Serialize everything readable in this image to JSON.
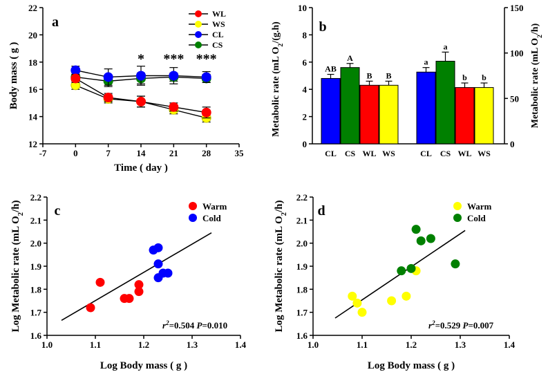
{
  "chart_data": [
    {
      "panel": "a",
      "type": "line",
      "xlabel": "Time ( day )",
      "ylabel": "Body mass ( g )",
      "xlim": [
        -7,
        35
      ],
      "ylim": [
        12,
        22
      ],
      "xticks": [
        "-7",
        "0",
        "7",
        "14",
        "21",
        "28",
        "35"
      ],
      "yticks": [
        "12",
        "14",
        "16",
        "18",
        "20",
        "22"
      ],
      "x": [
        0,
        7,
        14,
        21,
        28
      ],
      "legend": "top-right",
      "series": [
        {
          "name": "WL",
          "color": "#ff0000",
          "values": [
            16.8,
            15.4,
            15.1,
            14.7,
            14.3
          ],
          "errors": [
            0.3,
            0.3,
            0.4,
            0.3,
            0.4
          ]
        },
        {
          "name": "WS",
          "color": "#ffff00",
          "values": [
            16.3,
            15.3,
            15.1,
            14.5,
            13.9
          ],
          "errors": [
            0.3,
            0.3,
            0.4,
            0.3,
            0.3
          ]
        },
        {
          "name": "CL",
          "color": "#0000ff",
          "values": [
            17.4,
            16.9,
            17.0,
            17.0,
            16.9
          ],
          "errors": [
            0.3,
            0.6,
            0.7,
            0.6,
            0.4
          ]
        },
        {
          "name": "CS",
          "color": "#008000",
          "values": [
            16.9,
            16.6,
            16.8,
            16.9,
            16.8
          ],
          "errors": [
            0.3,
            0.4,
            0.4,
            0.3,
            0.3
          ]
        }
      ],
      "annotations": [
        {
          "x": 14,
          "text": "*"
        },
        {
          "x": 21,
          "text": "***"
        },
        {
          "x": 28,
          "text": "***"
        }
      ]
    },
    {
      "panel": "b",
      "type": "bar",
      "ylabel_left": "Metabolic rate (mL O2/(g.h)",
      "ylabel_right": "Metabolic rate (mL O2/h)",
      "ylim_left": [
        0,
        10
      ],
      "yticks_left": [
        "0",
        "2",
        "4",
        "6",
        "8",
        "10"
      ],
      "ylim_right": [
        0,
        150
      ],
      "yticks_right": [
        "0",
        "50",
        "100",
        "150"
      ],
      "groups": [
        {
          "axis": "left",
          "categories": [
            "CL",
            "CS",
            "WL",
            "WS"
          ],
          "colors": [
            "#0000ff",
            "#008000",
            "#ff0000",
            "#ffff00"
          ],
          "values": [
            4.8,
            5.6,
            4.3,
            4.3
          ],
          "errors": [
            0.3,
            0.3,
            0.3,
            0.3
          ],
          "letters": [
            "AB",
            "A",
            "B",
            "B"
          ]
        },
        {
          "axis": "right",
          "categories": [
            "CL",
            "CS",
            "WL",
            "WS"
          ],
          "colors": [
            "#0000ff",
            "#008000",
            "#ff0000",
            "#ffff00"
          ],
          "values": [
            79,
            91,
            62,
            62
          ],
          "errors": [
            5,
            10,
            5,
            5
          ],
          "letters": [
            "a",
            "a",
            "b",
            "b"
          ]
        }
      ]
    },
    {
      "panel": "c",
      "type": "scatter",
      "xlabel": "Log Body mass ( g )",
      "ylabel": "Log Metabolic rate (mL O2/h)",
      "xlim": [
        1.0,
        1.4
      ],
      "ylim": [
        1.6,
        2.2
      ],
      "xticks": [
        "1.0",
        "1.1",
        "1.2",
        "1.3",
        "1.4"
      ],
      "yticks": [
        "1.6",
        "1.7",
        "1.8",
        "1.9",
        "2.0",
        "2.1",
        "2.2"
      ],
      "legend": "top-right",
      "series": [
        {
          "name": "Warm",
          "color": "#ff0000",
          "points": [
            [
              1.09,
              1.72
            ],
            [
              1.11,
              1.83
            ],
            [
              1.16,
              1.76
            ],
            [
              1.17,
              1.76
            ],
            [
              1.19,
              1.79
            ],
            [
              1.19,
              1.82
            ]
          ]
        },
        {
          "name": "Cold",
          "color": "#0000ff",
          "points": [
            [
              1.22,
              1.97
            ],
            [
              1.23,
              1.98
            ],
            [
              1.23,
              1.91
            ],
            [
              1.23,
              1.85
            ],
            [
              1.24,
              1.87
            ],
            [
              1.25,
              1.87
            ]
          ]
        }
      ],
      "fit": {
        "x": [
          1.03,
          1.34
        ],
        "y": [
          1.665,
          2.045
        ]
      },
      "stat_r2": "=0.504",
      "stat_p": "=0.010"
    },
    {
      "panel": "d",
      "type": "scatter",
      "xlabel": "Log Body mass ( g )",
      "ylabel": "Log Metabolic rate (mL O2/h)",
      "xlim": [
        1.0,
        1.4
      ],
      "ylim": [
        1.6,
        2.2
      ],
      "xticks": [
        "1.0",
        "1.1",
        "1.2",
        "1.3",
        "1.4"
      ],
      "yticks": [
        "1.6",
        "1.7",
        "1.8",
        "1.9",
        "2.0",
        "2.1",
        "2.2"
      ],
      "legend": "top-right",
      "series": [
        {
          "name": "Warm",
          "color": "#ffff00",
          "points": [
            [
              1.08,
              1.77
            ],
            [
              1.09,
              1.74
            ],
            [
              1.1,
              1.7
            ],
            [
              1.16,
              1.75
            ],
            [
              1.19,
              1.77
            ],
            [
              1.21,
              1.88
            ]
          ]
        },
        {
          "name": "Cold",
          "color": "#008000",
          "points": [
            [
              1.21,
              2.06
            ],
            [
              1.22,
              2.01
            ],
            [
              1.24,
              2.02
            ],
            [
              1.18,
              1.88
            ],
            [
              1.2,
              1.89
            ],
            [
              1.29,
              1.91
            ]
          ]
        }
      ],
      "fit": {
        "x": [
          1.045,
          1.31
        ],
        "y": [
          1.675,
          2.055
        ]
      },
      "stat_r2": "=0.529",
      "stat_p": "=0.007"
    }
  ]
}
